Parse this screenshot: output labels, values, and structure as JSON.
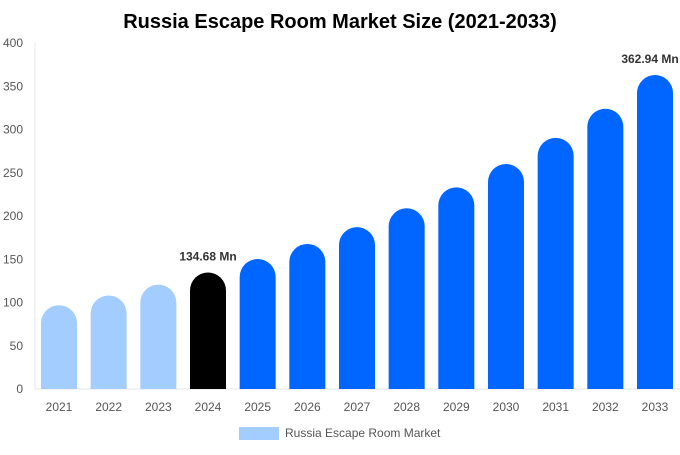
{
  "chart_data": {
    "type": "bar",
    "title": "Russia Escape Room Market Size (2021-2033)",
    "xlabel": "",
    "ylabel": "",
    "ylim": [
      0,
      400
    ],
    "yticks": [
      0,
      50,
      100,
      150,
      200,
      250,
      300,
      350,
      400
    ],
    "grid": false,
    "legend_placement": "bottom",
    "categories": [
      "2021",
      "2022",
      "2023",
      "2024",
      "2025",
      "2026",
      "2027",
      "2028",
      "2029",
      "2030",
      "2031",
      "2032",
      "2033"
    ],
    "series": [
      {
        "name": "Russia Escape Room Market",
        "values": [
          96.9,
          108.1,
          120.7,
          134.68,
          150.3,
          167.7,
          187.2,
          208.9,
          233.1,
          260.1,
          290.3,
          324.0,
          362.94
        ]
      }
    ],
    "bar_colors": [
      "#a3cdff",
      "#a3cdff",
      "#a3cdff",
      "#000000",
      "#0066ff",
      "#0066ff",
      "#0066ff",
      "#0066ff",
      "#0066ff",
      "#0066ff",
      "#0066ff",
      "#0066ff",
      "#0066ff"
    ],
    "legend_color": "#a3cdff",
    "annotations": [
      {
        "category": "2024",
        "text": "134.68 Mn"
      },
      {
        "category": "2033",
        "text": "362.94 Mn"
      }
    ]
  }
}
